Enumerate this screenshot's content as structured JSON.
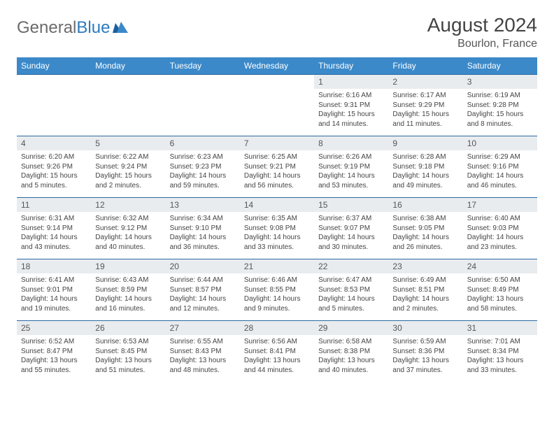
{
  "logo": {
    "part1": "General",
    "part2": "Blue"
  },
  "title": "August 2024",
  "location": "Bourlon, France",
  "day_headers": [
    "Sunday",
    "Monday",
    "Tuesday",
    "Wednesday",
    "Thursday",
    "Friday",
    "Saturday"
  ],
  "colors": {
    "header_bg": "#3b89c9",
    "row_border": "#2b6aa3",
    "daynum_bg": "#e9ecef",
    "text": "#444444"
  },
  "layout": {
    "first_weekday_index": 4,
    "days_in_month": 31
  },
  "days": {
    "1": {
      "sunrise": "6:16 AM",
      "sunset": "9:31 PM",
      "daylight_h": 15,
      "daylight_m": 14
    },
    "2": {
      "sunrise": "6:17 AM",
      "sunset": "9:29 PM",
      "daylight_h": 15,
      "daylight_m": 11
    },
    "3": {
      "sunrise": "6:19 AM",
      "sunset": "9:28 PM",
      "daylight_h": 15,
      "daylight_m": 8
    },
    "4": {
      "sunrise": "6:20 AM",
      "sunset": "9:26 PM",
      "daylight_h": 15,
      "daylight_m": 5
    },
    "5": {
      "sunrise": "6:22 AM",
      "sunset": "9:24 PM",
      "daylight_h": 15,
      "daylight_m": 2
    },
    "6": {
      "sunrise": "6:23 AM",
      "sunset": "9:23 PM",
      "daylight_h": 14,
      "daylight_m": 59
    },
    "7": {
      "sunrise": "6:25 AM",
      "sunset": "9:21 PM",
      "daylight_h": 14,
      "daylight_m": 56
    },
    "8": {
      "sunrise": "6:26 AM",
      "sunset": "9:19 PM",
      "daylight_h": 14,
      "daylight_m": 53
    },
    "9": {
      "sunrise": "6:28 AM",
      "sunset": "9:18 PM",
      "daylight_h": 14,
      "daylight_m": 49
    },
    "10": {
      "sunrise": "6:29 AM",
      "sunset": "9:16 PM",
      "daylight_h": 14,
      "daylight_m": 46
    },
    "11": {
      "sunrise": "6:31 AM",
      "sunset": "9:14 PM",
      "daylight_h": 14,
      "daylight_m": 43
    },
    "12": {
      "sunrise": "6:32 AM",
      "sunset": "9:12 PM",
      "daylight_h": 14,
      "daylight_m": 40
    },
    "13": {
      "sunrise": "6:34 AM",
      "sunset": "9:10 PM",
      "daylight_h": 14,
      "daylight_m": 36
    },
    "14": {
      "sunrise": "6:35 AM",
      "sunset": "9:08 PM",
      "daylight_h": 14,
      "daylight_m": 33
    },
    "15": {
      "sunrise": "6:37 AM",
      "sunset": "9:07 PM",
      "daylight_h": 14,
      "daylight_m": 30
    },
    "16": {
      "sunrise": "6:38 AM",
      "sunset": "9:05 PM",
      "daylight_h": 14,
      "daylight_m": 26
    },
    "17": {
      "sunrise": "6:40 AM",
      "sunset": "9:03 PM",
      "daylight_h": 14,
      "daylight_m": 23
    },
    "18": {
      "sunrise": "6:41 AM",
      "sunset": "9:01 PM",
      "daylight_h": 14,
      "daylight_m": 19
    },
    "19": {
      "sunrise": "6:43 AM",
      "sunset": "8:59 PM",
      "daylight_h": 14,
      "daylight_m": 16
    },
    "20": {
      "sunrise": "6:44 AM",
      "sunset": "8:57 PM",
      "daylight_h": 14,
      "daylight_m": 12
    },
    "21": {
      "sunrise": "6:46 AM",
      "sunset": "8:55 PM",
      "daylight_h": 14,
      "daylight_m": 9
    },
    "22": {
      "sunrise": "6:47 AM",
      "sunset": "8:53 PM",
      "daylight_h": 14,
      "daylight_m": 5
    },
    "23": {
      "sunrise": "6:49 AM",
      "sunset": "8:51 PM",
      "daylight_h": 14,
      "daylight_m": 2
    },
    "24": {
      "sunrise": "6:50 AM",
      "sunset": "8:49 PM",
      "daylight_h": 13,
      "daylight_m": 58
    },
    "25": {
      "sunrise": "6:52 AM",
      "sunset": "8:47 PM",
      "daylight_h": 13,
      "daylight_m": 55
    },
    "26": {
      "sunrise": "6:53 AM",
      "sunset": "8:45 PM",
      "daylight_h": 13,
      "daylight_m": 51
    },
    "27": {
      "sunrise": "6:55 AM",
      "sunset": "8:43 PM",
      "daylight_h": 13,
      "daylight_m": 48
    },
    "28": {
      "sunrise": "6:56 AM",
      "sunset": "8:41 PM",
      "daylight_h": 13,
      "daylight_m": 44
    },
    "29": {
      "sunrise": "6:58 AM",
      "sunset": "8:38 PM",
      "daylight_h": 13,
      "daylight_m": 40
    },
    "30": {
      "sunrise": "6:59 AM",
      "sunset": "8:36 PM",
      "daylight_h": 13,
      "daylight_m": 37
    },
    "31": {
      "sunrise": "7:01 AM",
      "sunset": "8:34 PM",
      "daylight_h": 13,
      "daylight_m": 33
    }
  }
}
